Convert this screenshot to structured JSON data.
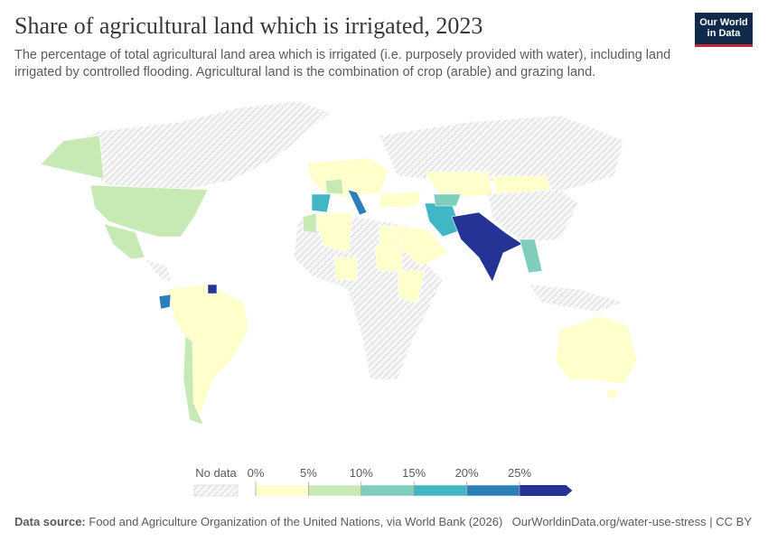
{
  "header": {
    "title": "Share of agricultural land which is irrigated, 2023",
    "subtitle": "The percentage of total agricultural land area which is irrigated (i.e. purposely provided with water), including land irrigated by controlled flooding. Agricultural land is the combination of crop (arable) and grazing land.",
    "logo": [
      "Our World",
      "in Data"
    ]
  },
  "legend": {
    "no_data": "No data",
    "ticks": [
      {
        "value": 0,
        "label": "0%"
      },
      {
        "value": 5,
        "label": "5%"
      },
      {
        "value": 10,
        "label": "10%"
      },
      {
        "value": 15,
        "label": "15%"
      },
      {
        "value": 20,
        "label": "20%"
      },
      {
        "value": 25,
        "label": "25%"
      }
    ],
    "colors": [
      "#ffffcc",
      "#c7e9b4",
      "#7fcdbb",
      "#41b6c4",
      "#2c7fb8",
      "#253494"
    ]
  },
  "footer": {
    "source_label": "Data source:",
    "source": "Food and Agriculture Organization of the United Nations, via World Bank (2026)",
    "url": "OurWorldinData.org/water-use-stress | CC BY"
  }
}
